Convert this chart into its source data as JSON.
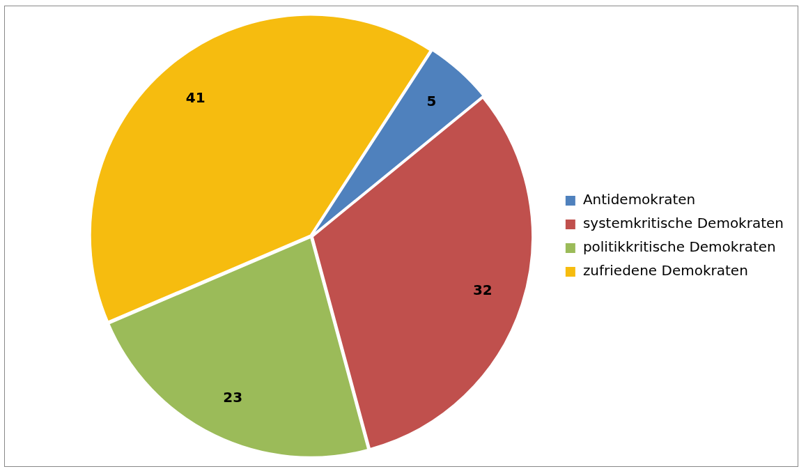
{
  "chart_data": {
    "type": "pie",
    "categories": [
      "Antidemokraten",
      "systemkritische Demokraten",
      "politikkritische Demokraten",
      "zufriedene Demokraten"
    ],
    "values": [
      5,
      32,
      23,
      41
    ],
    "colors": [
      "#4f81bd",
      "#c0504d",
      "#9bbb59",
      "#f6bc0f"
    ],
    "data_labels": true,
    "legend": "right"
  }
}
